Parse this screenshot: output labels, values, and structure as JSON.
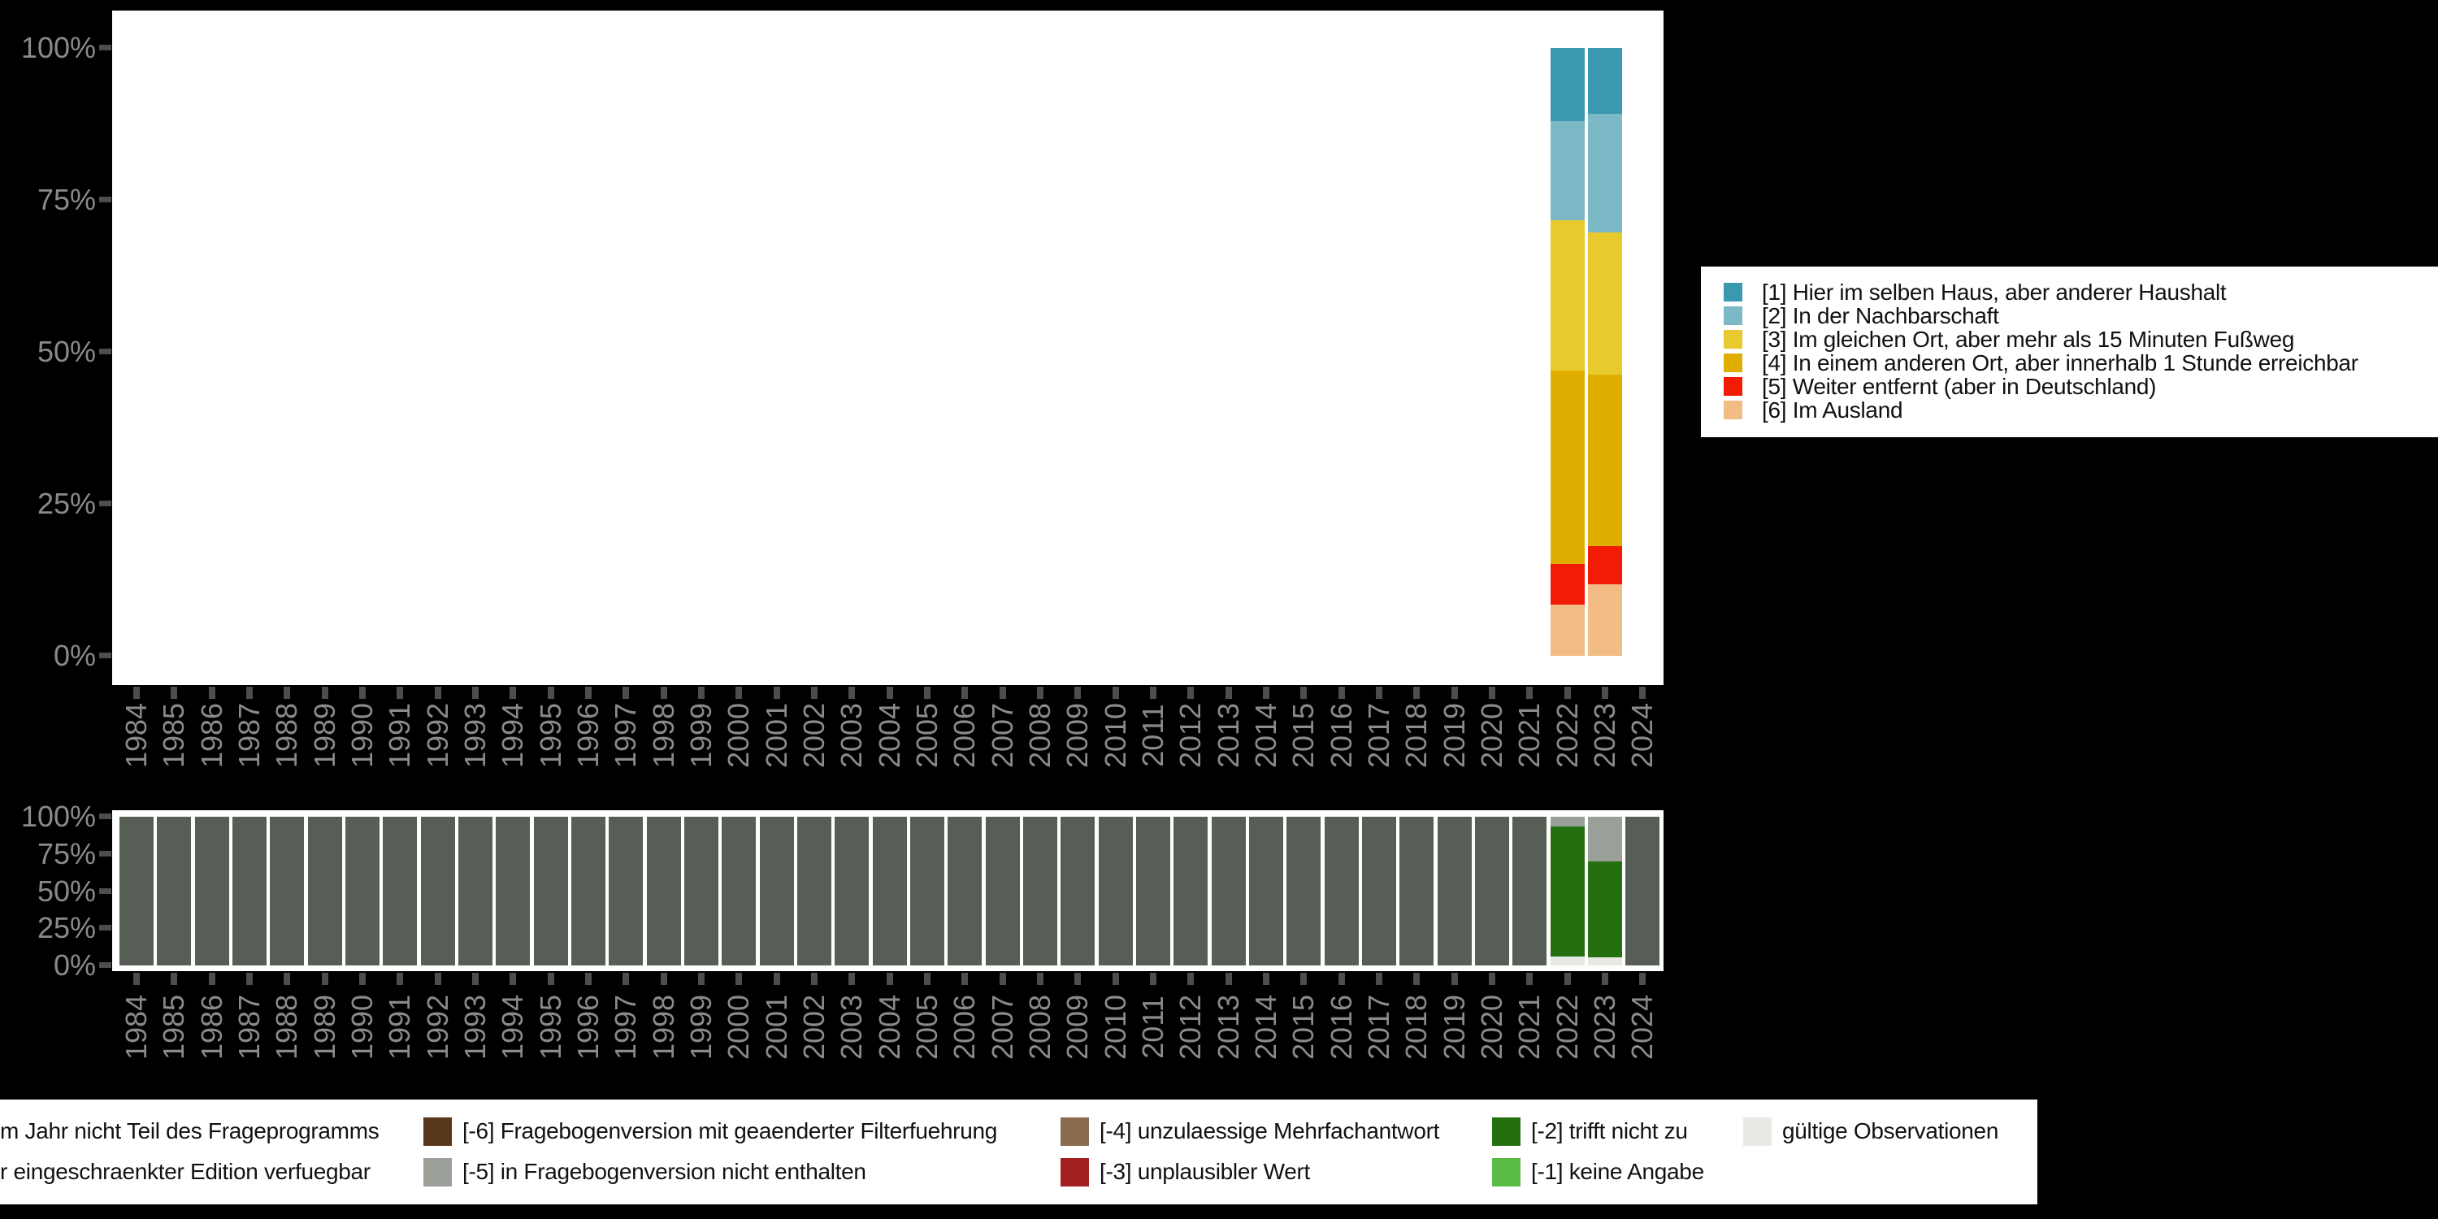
{
  "colors": {
    "background": "#000000",
    "panel": "#ffffff",
    "axis_text": "#8a8a8a",
    "tick": "#4d4d4d",
    "legend_text": "#111111",
    "legend_background": "#ffffff"
  },
  "axes": {
    "y_tick_labels": [
      "100%",
      "75%",
      "50%",
      "25%",
      "0%"
    ],
    "x_tick_labels": [
      "1984",
      "1985",
      "1986",
      "1987",
      "1988",
      "1989",
      "1990",
      "1991",
      "1992",
      "1993",
      "1994",
      "1995",
      "1996",
      "1997",
      "1998",
      "1999",
      "2000",
      "2001",
      "2002",
      "2003",
      "2004",
      "2005",
      "2006",
      "2007",
      "2008",
      "2009",
      "2010",
      "2011",
      "2012",
      "2013",
      "2014",
      "2015",
      "2016",
      "2017",
      "2018",
      "2019",
      "2020",
      "2021",
      "2022",
      "2023",
      "2024"
    ]
  },
  "chart_data": [
    {
      "id": "answer-distribution",
      "type": "bar",
      "stacked": true,
      "title": "",
      "xlabel": "",
      "ylabel": "",
      "ylim": [
        0,
        100
      ],
      "y_tick_labels": [
        "100%",
        "75%",
        "50%",
        "25%",
        "0%"
      ],
      "grid": false,
      "legend_position": "right",
      "x": [
        "1984",
        "1985",
        "1986",
        "1987",
        "1988",
        "1989",
        "1990",
        "1991",
        "1992",
        "1993",
        "1994",
        "1995",
        "1996",
        "1997",
        "1998",
        "1999",
        "2000",
        "2001",
        "2002",
        "2003",
        "2004",
        "2005",
        "2006",
        "2007",
        "2008",
        "2009",
        "2010",
        "2011",
        "2012",
        "2013",
        "2014",
        "2015",
        "2016",
        "2017",
        "2018",
        "2019",
        "2020",
        "2021",
        "2022",
        "2023",
        "2024"
      ],
      "series": [
        {
          "name": "[1] Hier im selben Haus, aber anderer Haushalt",
          "color": "#3a98b0",
          "values": {
            "2022": 12.0,
            "2023": 10.8
          }
        },
        {
          "name": "[2] In der Nachbarschaft",
          "color": "#7cb9c6",
          "values": {
            "2022": 16.3,
            "2023": 19.5
          }
        },
        {
          "name": "[3] Im gleichen Ort, aber mehr als 15 Minuten Fußweg",
          "color": "#e8ca2e",
          "values": {
            "2022": 24.8,
            "2023": 23.4
          }
        },
        {
          "name": "[4] In einem anderen Ort, aber innerhalb 1 Stunde erreichbar",
          "color": "#dfae00",
          "values": {
            "2022": 31.8,
            "2023": 28.3
          }
        },
        {
          "name": "[5] Weiter entfernt (aber in Deutschland)",
          "color": "#f11c03",
          "values": {
            "2022": 6.7,
            "2023": 6.2
          }
        },
        {
          "name": "[6] Im Ausland",
          "color": "#f1bd85",
          "values": {
            "2022": 8.4,
            "2023": 11.8
          }
        }
      ]
    },
    {
      "id": "missing-codes",
      "type": "bar",
      "stacked": true,
      "title": "",
      "xlabel": "",
      "ylabel": "",
      "ylim": [
        0,
        100
      ],
      "y_tick_labels": [
        "100%",
        "75%",
        "50%",
        "25%",
        "0%"
      ],
      "grid": false,
      "legend_position": "bottom",
      "x": [
        "1984",
        "1985",
        "1986",
        "1987",
        "1988",
        "1989",
        "1990",
        "1991",
        "1992",
        "1993",
        "1994",
        "1995",
        "1996",
        "1997",
        "1998",
        "1999",
        "2000",
        "2001",
        "2002",
        "2003",
        "2004",
        "2005",
        "2006",
        "2007",
        "2008",
        "2009",
        "2010",
        "2011",
        "2012",
        "2013",
        "2014",
        "2015",
        "2016",
        "2017",
        "2018",
        "2019",
        "2020",
        "2021",
        "2022",
        "2023",
        "2024"
      ],
      "series": [
        {
          "name": "m Jahr nicht Teil des Frageprogramms",
          "color": "#575e55",
          "default": 100,
          "values": {
            "2022": 0,
            "2023": 0
          }
        },
        {
          "name": "[-5] in Fragebogenversion nicht enthalten",
          "color": "#9aa097",
          "values": {
            "2022": 6.4,
            "2023": 30.0
          }
        },
        {
          "name": "[-2] trifft nicht zu",
          "color": "#246f10",
          "values": {
            "2022": 87.7,
            "2023": 64.7
          }
        },
        {
          "name": "gültige Observationen",
          "color": "#e6eae3",
          "values": {
            "2022": 5.9,
            "2023": 5.3
          }
        }
      ]
    }
  ],
  "bottom_legend": {
    "rows": [
      [
        {
          "key": null,
          "label": "m Jahr nicht Teil des Frageprogramms"
        },
        {
          "key": "#5a381c",
          "label": "[-6] Fragebogenversion mit geaenderter Filterfuehrung"
        },
        {
          "key": "#8a6d4e",
          "label": "[-4] unzulaessige Mehrfachantwort"
        },
        {
          "key": "#246f10",
          "label": "[-2] trifft nicht zu"
        },
        {
          "key": "#e6eae3",
          "label": "gültige Observationen"
        }
      ],
      [
        {
          "key": null,
          "label": "r eingeschraenkter Edition verfuegbar"
        },
        {
          "key": "#9aa097",
          "label": "[-5] in Fragebogenversion nicht enthalten"
        },
        {
          "key": "#a32020",
          "label": "[-3] unplausibler Wert"
        },
        {
          "key": "#58bb46",
          "label": "[-1] keine Angabe"
        }
      ]
    ]
  }
}
